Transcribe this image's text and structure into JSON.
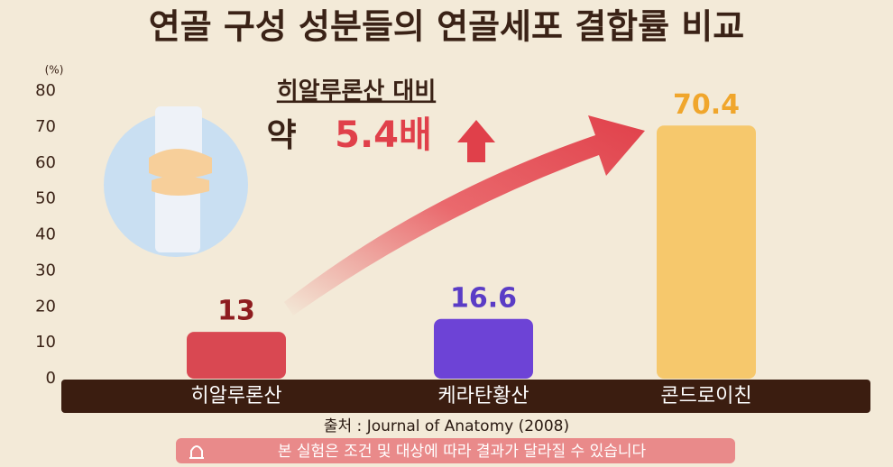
{
  "chart_data": {
    "type": "bar",
    "title": "연골 구성 성분들의 연골세포 결합률 비교",
    "y_unit": "(%)",
    "categories": [
      "히알루론산",
      "케라탄황산",
      "콘드로이친"
    ],
    "values": [
      13,
      16.6,
      70.4
    ],
    "colors": [
      "#d94852",
      "#6d43d6",
      "#f6c86c"
    ],
    "label_colors": [
      "#8e1c1f",
      "#5a3cc6",
      "#f0a62c"
    ],
    "ylim": [
      0,
      80
    ],
    "yticks": [
      0,
      10,
      20,
      30,
      40,
      50,
      60,
      70,
      80
    ],
    "grid": false,
    "annotations": {
      "comparison": "히알루론산 대비",
      "approx": "약",
      "ratio": "5.4배"
    },
    "source": "출처 : Journal of Anatomy (2008)",
    "disclaimer": "본 실험은 조건 및 대상에 따라 결과가 달라질 수 있습니다"
  }
}
